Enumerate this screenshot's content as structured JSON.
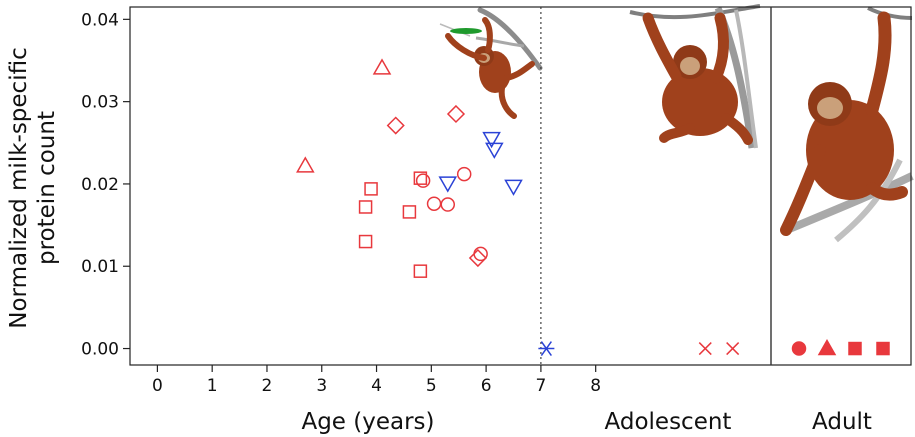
{
  "chart_data": {
    "type": "scatter",
    "xlabel": "Age (years)",
    "ylabel_lines": [
      "Normalized milk-specific",
      "protein count"
    ],
    "x_ticks": [
      0,
      1,
      2,
      3,
      4,
      5,
      6,
      7,
      8
    ],
    "y_ticks": [
      "0.00",
      "0.01",
      "0.02",
      "0.03",
      "0.04"
    ],
    "xlim": [
      -0.5,
      11.2
    ],
    "ylim": [
      -0.002,
      0.0415
    ],
    "weaning_line_x": 7,
    "groups": [
      {
        "label": "Adolescent",
        "x_range": [
          7,
          11.2
        ]
      },
      {
        "label": "Adult"
      }
    ],
    "colors": {
      "red": "#e8383d",
      "blue": "#2b43d6"
    },
    "series": [
      {
        "marker": "triangle-up",
        "color": "red",
        "filled": false,
        "points": [
          [
            2.7,
            0.0222
          ],
          [
            4.1,
            0.0341
          ]
        ]
      },
      {
        "marker": "diamond",
        "color": "red",
        "filled": false,
        "points": [
          [
            4.35,
            0.0271
          ],
          [
            5.45,
            0.0285
          ],
          [
            5.85,
            0.011
          ]
        ]
      },
      {
        "marker": "square",
        "color": "red",
        "filled": false,
        "points": [
          [
            3.8,
            0.013
          ],
          [
            3.8,
            0.0172
          ],
          [
            3.9,
            0.0194
          ],
          [
            4.6,
            0.0166
          ],
          [
            4.8,
            0.0207
          ],
          [
            4.8,
            0.0094
          ]
        ]
      },
      {
        "marker": "circle",
        "color": "red",
        "filled": false,
        "points": [
          [
            4.85,
            0.0204
          ],
          [
            5.05,
            0.0176
          ],
          [
            5.3,
            0.0175
          ],
          [
            5.6,
            0.0212
          ],
          [
            5.9,
            0.0115
          ]
        ]
      },
      {
        "marker": "triangle-down",
        "color": "blue",
        "filled": false,
        "points": [
          [
            5.3,
            0.0201
          ],
          [
            6.1,
            0.0255
          ],
          [
            6.15,
            0.0242
          ],
          [
            6.5,
            0.0197
          ]
        ]
      },
      {
        "marker": "asterisk",
        "color": "blue",
        "filled": false,
        "points": [
          [
            7.1,
            0.0
          ]
        ]
      },
      {
        "marker": "x",
        "color": "red",
        "filled": false,
        "points": [
          [
            10.0,
            0.0
          ],
          [
            10.5,
            0.0
          ]
        ]
      },
      {
        "group": "Adult",
        "y": 0.0,
        "markers": [
          {
            "marker": "circle",
            "color": "red",
            "filled": true
          },
          {
            "marker": "triangle-up",
            "color": "red",
            "filled": true
          },
          {
            "marker": "square",
            "color": "red",
            "filled": true
          },
          {
            "marker": "square",
            "color": "red",
            "filled": true
          }
        ]
      }
    ],
    "illustrations": [
      "juvenile-orangutan-illustration",
      "adolescent-orangutan-illustration",
      "adult-orangutan-illustration"
    ]
  }
}
